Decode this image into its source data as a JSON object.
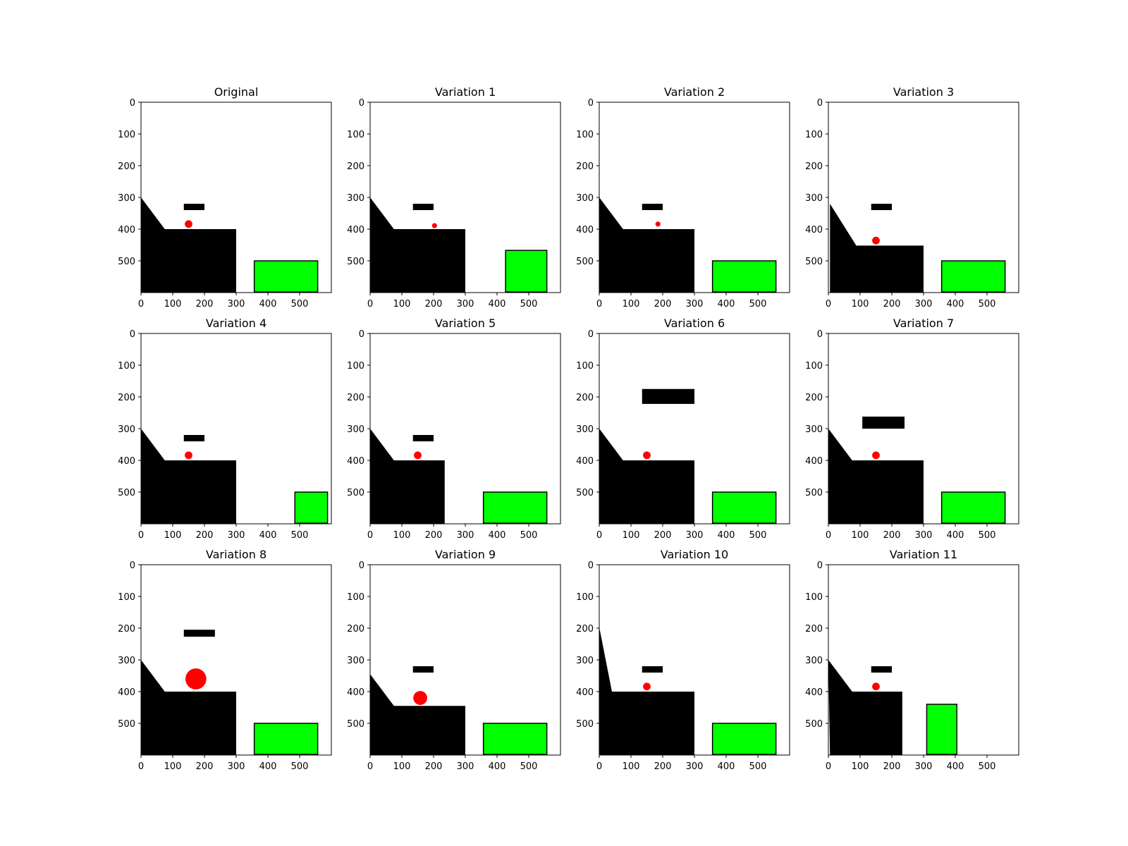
{
  "colors": {
    "ball": "#ff0000",
    "goal": "#00ff00",
    "solid": "#000000",
    "background": "#ffffff"
  },
  "chart_data": [
    {
      "type": "scene",
      "title": "Original",
      "xlim": [
        0,
        600
      ],
      "ylim": [
        600,
        0
      ],
      "xticks": [
        "0",
        "100",
        "200",
        "300",
        "400",
        "500"
      ],
      "yticks": [
        "0",
        "100",
        "200",
        "300",
        "400",
        "500"
      ],
      "ramp": [
        [
          0,
          600
        ],
        [
          0,
          300
        ],
        [
          75,
          400
        ],
        [
          300,
          400
        ],
        [
          300,
          600
        ]
      ],
      "bar": {
        "x0": 135,
        "x1": 200,
        "y0": 320,
        "y1": 340
      },
      "ball": {
        "cx": 150,
        "cy": 384,
        "r": 12
      },
      "goal": {
        "x0": 357,
        "x1": 557,
        "y0": 500,
        "y1": 598
      }
    },
    {
      "type": "scene",
      "title": "Variation 1",
      "xlim": [
        0,
        600
      ],
      "ylim": [
        600,
        0
      ],
      "xticks": [
        "0",
        "100",
        "200",
        "300",
        "400",
        "500"
      ],
      "yticks": [
        "0",
        "100",
        "200",
        "300",
        "400",
        "500"
      ],
      "ramp": [
        [
          0,
          600
        ],
        [
          0,
          300
        ],
        [
          75,
          400
        ],
        [
          300,
          400
        ],
        [
          300,
          600
        ]
      ],
      "bar": {
        "x0": 135,
        "x1": 200,
        "y0": 320,
        "y1": 340
      },
      "ball": {
        "cx": 203,
        "cy": 389,
        "r": 8
      },
      "goal": {
        "x0": 427,
        "x1": 557,
        "y0": 467,
        "y1": 598
      }
    },
    {
      "type": "scene",
      "title": "Variation 2",
      "xlim": [
        0,
        600
      ],
      "ylim": [
        600,
        0
      ],
      "xticks": [
        "0",
        "100",
        "200",
        "300",
        "400",
        "500"
      ],
      "yticks": [
        "0",
        "100",
        "200",
        "300",
        "400",
        "500"
      ],
      "ramp": [
        [
          0,
          600
        ],
        [
          0,
          300
        ],
        [
          75,
          400
        ],
        [
          300,
          400
        ],
        [
          300,
          600
        ]
      ],
      "bar": {
        "x0": 135,
        "x1": 200,
        "y0": 320,
        "y1": 340
      },
      "ball": {
        "cx": 185,
        "cy": 384,
        "r": 8
      },
      "goal": {
        "x0": 357,
        "x1": 557,
        "y0": 500,
        "y1": 598
      }
    },
    {
      "type": "scene",
      "title": "Variation 3",
      "xlim": [
        0,
        600
      ],
      "ylim": [
        600,
        0
      ],
      "xticks": [
        "0",
        "100",
        "200",
        "300",
        "400",
        "500"
      ],
      "yticks": [
        "0",
        "100",
        "200",
        "300",
        "400",
        "500"
      ],
      "ramp": [
        [
          5,
          600
        ],
        [
          5,
          320
        ],
        [
          88,
          452
        ],
        [
          300,
          452
        ],
        [
          300,
          600
        ]
      ],
      "bar": {
        "x0": 135,
        "x1": 200,
        "y0": 320,
        "y1": 340
      },
      "ball": {
        "cx": 150,
        "cy": 436,
        "r": 12
      },
      "goal": {
        "x0": 357,
        "x1": 557,
        "y0": 500,
        "y1": 598
      }
    },
    {
      "type": "scene",
      "title": "Variation 4",
      "xlim": [
        0,
        600
      ],
      "ylim": [
        600,
        0
      ],
      "xticks": [
        "0",
        "100",
        "200",
        "300",
        "400",
        "500"
      ],
      "yticks": [
        "0",
        "100",
        "200",
        "300",
        "400",
        "500"
      ],
      "ramp": [
        [
          0,
          600
        ],
        [
          0,
          300
        ],
        [
          75,
          400
        ],
        [
          300,
          400
        ],
        [
          300,
          600
        ]
      ],
      "bar": {
        "x0": 135,
        "x1": 200,
        "y0": 320,
        "y1": 340
      },
      "ball": {
        "cx": 150,
        "cy": 384,
        "r": 12
      },
      "goal": {
        "x0": 485,
        "x1": 588,
        "y0": 500,
        "y1": 598
      }
    },
    {
      "type": "scene",
      "title": "Variation 5",
      "xlim": [
        0,
        600
      ],
      "ylim": [
        600,
        0
      ],
      "xticks": [
        "0",
        "100",
        "200",
        "300",
        "400",
        "500"
      ],
      "yticks": [
        "0",
        "100",
        "200",
        "300",
        "400",
        "500"
      ],
      "ramp": [
        [
          0,
          600
        ],
        [
          0,
          300
        ],
        [
          75,
          400
        ],
        [
          235,
          400
        ],
        [
          235,
          600
        ]
      ],
      "bar": {
        "x0": 135,
        "x1": 200,
        "y0": 320,
        "y1": 340
      },
      "ball": {
        "cx": 150,
        "cy": 384,
        "r": 12
      },
      "goal": {
        "x0": 357,
        "x1": 557,
        "y0": 500,
        "y1": 598
      }
    },
    {
      "type": "scene",
      "title": "Variation 6",
      "xlim": [
        0,
        600
      ],
      "ylim": [
        600,
        0
      ],
      "xticks": [
        "0",
        "100",
        "200",
        "300",
        "400",
        "500"
      ],
      "yticks": [
        "0",
        "100",
        "200",
        "300",
        "400",
        "500"
      ],
      "ramp": [
        [
          0,
          600
        ],
        [
          0,
          300
        ],
        [
          75,
          400
        ],
        [
          300,
          400
        ],
        [
          300,
          600
        ]
      ],
      "bar": {
        "x0": 135,
        "x1": 300,
        "y0": 175,
        "y1": 222
      },
      "ball": {
        "cx": 150,
        "cy": 384,
        "r": 12
      },
      "goal": {
        "x0": 357,
        "x1": 557,
        "y0": 500,
        "y1": 598
      }
    },
    {
      "type": "scene",
      "title": "Variation 7",
      "xlim": [
        0,
        600
      ],
      "ylim": [
        600,
        0
      ],
      "xticks": [
        "0",
        "100",
        "200",
        "300",
        "400",
        "500"
      ],
      "yticks": [
        "0",
        "100",
        "200",
        "300",
        "400",
        "500"
      ],
      "ramp": [
        [
          0,
          600
        ],
        [
          0,
          300
        ],
        [
          75,
          400
        ],
        [
          300,
          400
        ],
        [
          300,
          600
        ]
      ],
      "bar": {
        "x0": 107,
        "x1": 240,
        "y0": 262,
        "y1": 300
      },
      "ball": {
        "cx": 150,
        "cy": 384,
        "r": 12
      },
      "goal": {
        "x0": 357,
        "x1": 557,
        "y0": 500,
        "y1": 598
      }
    },
    {
      "type": "scene",
      "title": "Variation 8",
      "xlim": [
        0,
        600
      ],
      "ylim": [
        600,
        0
      ],
      "xticks": [
        "0",
        "100",
        "200",
        "300",
        "400",
        "500"
      ],
      "yticks": [
        "0",
        "100",
        "200",
        "300",
        "400",
        "500"
      ],
      "ramp": [
        [
          0,
          600
        ],
        [
          0,
          300
        ],
        [
          75,
          400
        ],
        [
          300,
          400
        ],
        [
          300,
          600
        ]
      ],
      "bar": {
        "x0": 135,
        "x1": 233,
        "y0": 205,
        "y1": 227
      },
      "ball": {
        "cx": 173,
        "cy": 360,
        "r": 33
      },
      "goal": {
        "x0": 357,
        "x1": 557,
        "y0": 500,
        "y1": 598
      }
    },
    {
      "type": "scene",
      "title": "Variation 9",
      "xlim": [
        0,
        600
      ],
      "ylim": [
        600,
        0
      ],
      "xticks": [
        "0",
        "100",
        "200",
        "300",
        "400",
        "500"
      ],
      "yticks": [
        "0",
        "100",
        "200",
        "300",
        "400",
        "500"
      ],
      "ramp": [
        [
          0,
          600
        ],
        [
          0,
          345
        ],
        [
          75,
          445
        ],
        [
          300,
          445
        ],
        [
          300,
          600
        ]
      ],
      "bar": {
        "x0": 135,
        "x1": 200,
        "y0": 320,
        "y1": 340
      },
      "ball": {
        "cx": 158,
        "cy": 420,
        "r": 22
      },
      "goal": {
        "x0": 357,
        "x1": 557,
        "y0": 500,
        "y1": 598
      }
    },
    {
      "type": "scene",
      "title": "Variation 10",
      "xlim": [
        0,
        600
      ],
      "ylim": [
        600,
        0
      ],
      "xticks": [
        "0",
        "100",
        "200",
        "300",
        "400",
        "500"
      ],
      "yticks": [
        "0",
        "100",
        "200",
        "300",
        "400",
        "500"
      ],
      "ramp": [
        [
          0,
          600
        ],
        [
          0,
          197
        ],
        [
          40,
          400
        ],
        [
          300,
          400
        ],
        [
          300,
          600
        ]
      ],
      "bar": {
        "x0": 135,
        "x1": 200,
        "y0": 320,
        "y1": 340
      },
      "ball": {
        "cx": 150,
        "cy": 384,
        "r": 12
      },
      "goal": {
        "x0": 357,
        "x1": 557,
        "y0": 500,
        "y1": 598
      }
    },
    {
      "type": "scene",
      "title": "Variation 11",
      "xlim": [
        0,
        600
      ],
      "ylim": [
        600,
        0
      ],
      "xticks": [
        "0",
        "100",
        "200",
        "300",
        "400",
        "500"
      ],
      "yticks": [
        "0",
        "100",
        "200",
        "300",
        "400",
        "500"
      ],
      "ramp": [
        [
          5,
          600
        ],
        [
          0,
          300
        ],
        [
          75,
          400
        ],
        [
          233,
          400
        ],
        [
          233,
          600
        ]
      ],
      "bar": {
        "x0": 135,
        "x1": 200,
        "y0": 320,
        "y1": 340
      },
      "ball": {
        "cx": 150,
        "cy": 384,
        "r": 12
      },
      "goal": {
        "x0": 310,
        "x1": 405,
        "y0": 440,
        "y1": 598
      }
    }
  ]
}
